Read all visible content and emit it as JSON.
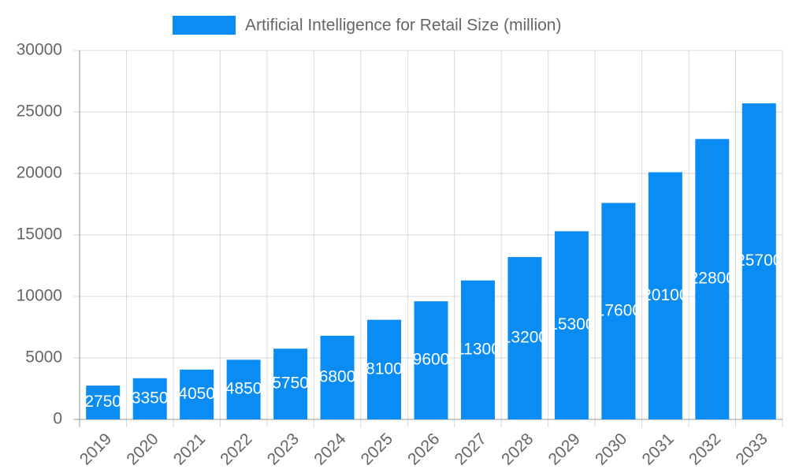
{
  "chart_data": {
    "type": "bar",
    "categories": [
      "2019",
      "2020",
      "2021",
      "2022",
      "2023",
      "2024",
      "2025",
      "2026",
      "2027",
      "2028",
      "2029",
      "2030",
      "2031",
      "2032",
      "2033"
    ],
    "series": [
      {
        "name": "Artificial Intelligence for Retail Size (million)",
        "color": "#0a8cf5",
        "values": [
          2750,
          3350,
          4050,
          4850,
          5750,
          6800,
          8100,
          9600,
          11300,
          13200,
          15300,
          17600,
          20100,
          22800,
          25700
        ]
      }
    ],
    "ylim": [
      0,
      30000
    ],
    "yticks": [
      0,
      5000,
      10000,
      15000,
      20000,
      25000,
      30000
    ],
    "grid": true,
    "legend": "top"
  }
}
